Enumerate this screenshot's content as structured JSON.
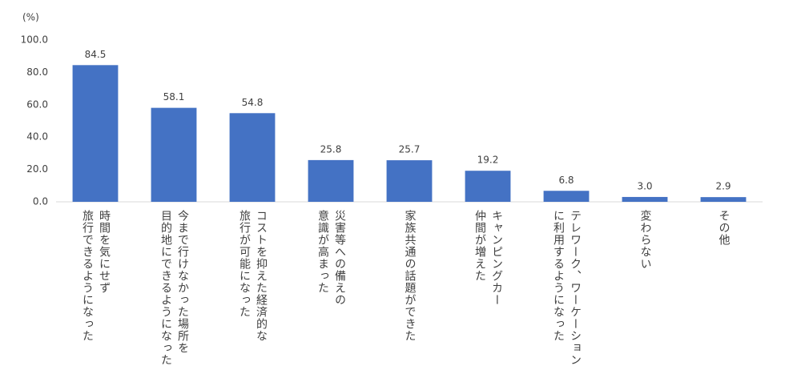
{
  "chart_data": {
    "type": "bar",
    "y_label": "(%)",
    "categories": [
      "時間を気にせず\n旅行できるようになった",
      "今まで行けなかった場所を\n目的地にできるようになった",
      "コストを抑えた経済的な\n旅行が可能になった",
      "災害等への備えの\n意識が高まった",
      "家族共通の話題ができた",
      "キャンピングカー\n仲間が増えた",
      "テレワーク、ワーケーション\nに利用するようになった",
      "変わらない",
      "その他"
    ],
    "values": [
      84.5,
      58.1,
      54.8,
      25.8,
      25.7,
      19.2,
      6.8,
      3.0,
      2.9
    ],
    "value_labels": [
      "84.5",
      "58.1",
      "54.8",
      "25.8",
      "25.7",
      "19.2",
      "6.8",
      "3.0",
      "2.9"
    ],
    "color": "#4472c4",
    "ylim": [
      0,
      100
    ],
    "yticks": [
      {
        "value": 0,
        "label": "0.0"
      },
      {
        "value": 20,
        "label": "20.0"
      },
      {
        "value": 40,
        "label": "40.0"
      },
      {
        "value": 60,
        "label": "60.0"
      },
      {
        "value": 80,
        "label": "80.0"
      },
      {
        "value": 100,
        "label": "100.0"
      }
    ],
    "grid": false
  }
}
